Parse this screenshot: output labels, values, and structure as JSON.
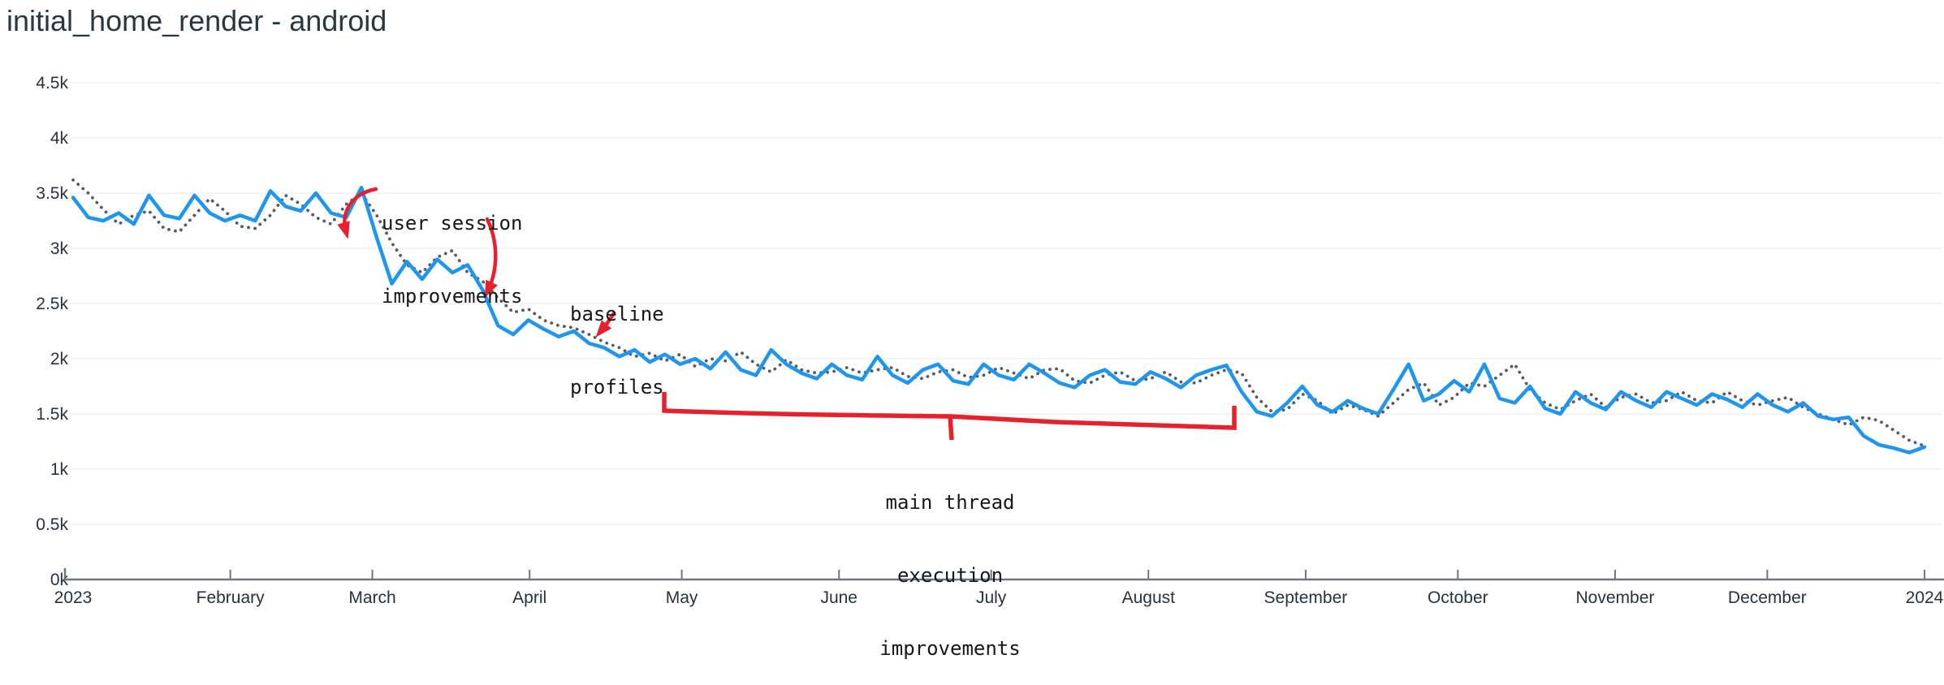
{
  "page": {
    "title": "initial_home_render - android"
  },
  "chart_data": {
    "type": "line",
    "title": "initial_home_render - android",
    "xlabel": "",
    "ylabel": "",
    "x_tick_labels": [
      "2023",
      "February",
      "March",
      "April",
      "May",
      "June",
      "July",
      "August",
      "September",
      "October",
      "November",
      "December",
      "2024"
    ],
    "x_tick_days": [
      0,
      31,
      59,
      90,
      120,
      151,
      181,
      212,
      243,
      273,
      304,
      334,
      365
    ],
    "y_tick_labels": [
      "0k",
      "0.5k",
      "1k",
      "1.5k",
      "2k",
      "2.5k",
      "3k",
      "3.5k",
      "4k",
      "4.5k"
    ],
    "y_tick_values": [
      0,
      500,
      1000,
      1500,
      2000,
      2500,
      3000,
      3500,
      4000,
      4500
    ],
    "ylim": [
      0,
      4500
    ],
    "grid": "horizontal-only",
    "legend": "none",
    "sample_interval_days": 3,
    "series": [
      {
        "name": "solid-blue",
        "style": "solid",
        "color": "#1e96f0",
        "values": [
          3460,
          3280,
          3250,
          3320,
          3220,
          3480,
          3300,
          3270,
          3480,
          3320,
          3250,
          3300,
          3250,
          3520,
          3380,
          3340,
          3500,
          3320,
          3280,
          3550,
          3100,
          2680,
          2880,
          2720,
          2900,
          2780,
          2850,
          2620,
          2300,
          2220,
          2350,
          2270,
          2200,
          2250,
          2140,
          2100,
          2020,
          2080,
          1970,
          2040,
          1950,
          2000,
          1910,
          2060,
          1900,
          1850,
          2080,
          1950,
          1870,
          1820,
          1950,
          1850,
          1810,
          2020,
          1850,
          1780,
          1900,
          1950,
          1800,
          1770,
          1950,
          1850,
          1810,
          1950,
          1870,
          1780,
          1740,
          1850,
          1900,
          1790,
          1770,
          1880,
          1820,
          1740,
          1850,
          1900,
          1940,
          1700,
          1520,
          1480,
          1600,
          1750,
          1580,
          1520,
          1620,
          1550,
          1500,
          1720,
          1950,
          1620,
          1680,
          1800,
          1700,
          1950,
          1640,
          1600,
          1750,
          1550,
          1500,
          1700,
          1600,
          1540,
          1700,
          1620,
          1560,
          1700,
          1640,
          1580,
          1680,
          1630,
          1560,
          1680,
          1580,
          1520,
          1600,
          1480,
          1450,
          1470,
          1300,
          1220,
          1190,
          1150,
          1200
        ]
      },
      {
        "name": "dotted-gray",
        "style": "dotted",
        "color": "#565b64",
        "values": [
          3620,
          3500,
          3350,
          3220,
          3300,
          3340,
          3180,
          3150,
          3300,
          3450,
          3340,
          3200,
          3180,
          3300,
          3480,
          3400,
          3280,
          3220,
          3400,
          3500,
          3300,
          3050,
          2850,
          2780,
          2920,
          2980,
          2780,
          2700,
          2550,
          2420,
          2450,
          2350,
          2300,
          2280,
          2220,
          2150,
          2100,
          2020,
          2050,
          1980,
          2040,
          1930,
          2000,
          1980,
          2060,
          1950,
          1880,
          1990,
          1900,
          1870,
          1880,
          1920,
          1870,
          1900,
          1920,
          1840,
          1820,
          1880,
          1900,
          1830,
          1850,
          1920,
          1870,
          1820,
          1900,
          1910,
          1800,
          1780,
          1850,
          1880,
          1800,
          1820,
          1880,
          1790,
          1780,
          1850,
          1900,
          1870,
          1650,
          1520,
          1540,
          1680,
          1620,
          1500,
          1580,
          1540,
          1480,
          1600,
          1720,
          1780,
          1580,
          1650,
          1780,
          1750,
          1850,
          1950,
          1720,
          1600,
          1540,
          1620,
          1680,
          1560,
          1650,
          1680,
          1600,
          1620,
          1700,
          1620,
          1600,
          1700,
          1620,
          1580,
          1620,
          1650,
          1560,
          1500,
          1450,
          1400,
          1470,
          1440,
          1350,
          1260,
          1210
        ]
      }
    ],
    "annotations": [
      {
        "label": "user session improvements",
        "lines": [
          "user session",
          "improvements"
        ],
        "color": "#e8202b",
        "arrow": "two curved arrows pointing at the early-March and late-March drops"
      },
      {
        "label": "baseline profiles",
        "lines": [
          "baseline",
          "profiles"
        ],
        "color": "#e8202b",
        "arrow": "short arrow pointing at the mid-April level"
      },
      {
        "label": "main thread execution improvements",
        "lines": [
          "main thread",
          "execution",
          "improvements"
        ],
        "color": "#e8202b",
        "arrow": "bracket spanning late April through mid August"
      }
    ]
  },
  "colors": {
    "background": "#ffffff",
    "title_text": "#253845",
    "axis_text": "#26323e",
    "axis_line": "#6e7781",
    "gridline": "#e9e9e9",
    "series_solid": "#1e96f0",
    "series_dotted": "#565b64",
    "annotation_red": "#e8202b",
    "annotation_text": "#14181d"
  }
}
